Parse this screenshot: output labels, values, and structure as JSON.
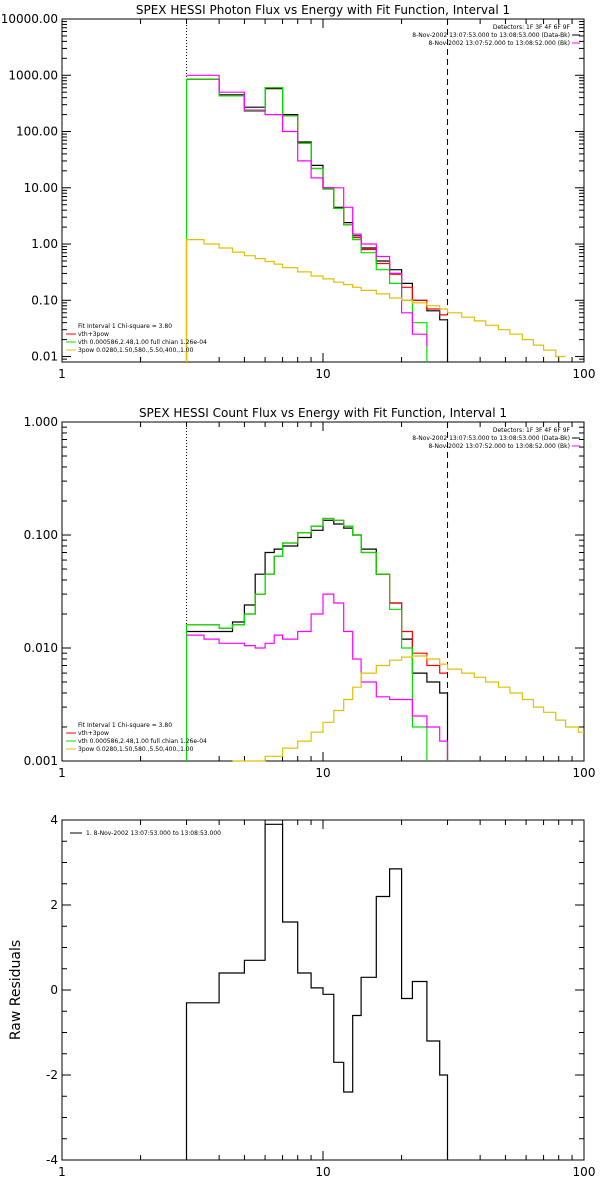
{
  "colors": {
    "black": "#000000",
    "red": "#ff0000",
    "green": "#00e000",
    "magenta": "#ff00ff",
    "yellow": "#e0c000"
  },
  "chart_data": [
    {
      "type": "line",
      "title": "SPEX HESSI Photon Flux vs Energy with Fit Function, Interval 1",
      "xscale": "log",
      "yscale": "log",
      "xlim": [
        1,
        100
      ],
      "ylim": [
        0.008,
        10000
      ],
      "x_ticks": [
        {
          "v": 1,
          "label": "1"
        },
        {
          "v": 10,
          "label": "10"
        },
        {
          "v": 100,
          "label": "100"
        }
      ],
      "y_ticks": [
        {
          "v": 0.01,
          "label": "0.01"
        },
        {
          "v": 0.1,
          "label": "0.10"
        },
        {
          "v": 1,
          "label": "1.00"
        },
        {
          "v": 10,
          "label": "10.00"
        },
        {
          "v": 100,
          "label": "100.00"
        },
        {
          "v": 1000,
          "label": "1000.00"
        },
        {
          "v": 10000,
          "label": "10000.00"
        }
      ],
      "vlines": [
        {
          "x": 3,
          "style": "dotted"
        },
        {
          "x": 30,
          "style": "dashed"
        }
      ],
      "info_lines": [
        "Detectors: 1F 3F 4F 6F 9F",
        "8-Nov-2002 13:07:53.000 to 13:08:53.000 (Data-Bk)",
        "8-Nov-2002 13:07:52.000 to 13:08:52.000 (Bk)"
      ],
      "info_colors": [
        "",
        "#000000",
        "#ff00ff"
      ],
      "legend_lines": [
        "Fit Interval 1   Chi-square = 3.80",
        "vth+3pow",
        "vth 0.000586,2.48,1.00  full chian 1.26e-04",
        "3pow 0.0280,1.50,580.,5.50,400.,1.00"
      ],
      "legend_colors": [
        "",
        "#ff0000",
        "#00e000",
        "#e0c000"
      ],
      "series": [
        {
          "color": "#000000",
          "edges": [
            3,
            3.5,
            4,
            4.5,
            5,
            5.5,
            6,
            6.5,
            7,
            8,
            9,
            10,
            11,
            12,
            13,
            14,
            16,
            18,
            20,
            22,
            25,
            28,
            30
          ],
          "values": [
            850,
            850,
            450,
            450,
            270,
            270,
            580,
            580,
            200,
            65,
            25,
            10,
            4.5,
            2.4,
            1.4,
            0.85,
            0.5,
            0.35,
            0.2,
            0.1,
            0.065,
            0.045
          ],
          "drop": true,
          "drop_to": 0.008
        },
        {
          "color": "#ff0000",
          "edges": [
            3,
            3.5,
            4,
            4.5,
            5,
            5.5,
            6,
            6.5,
            7,
            8,
            9,
            10,
            11,
            12,
            13,
            14,
            16,
            18,
            20,
            22,
            25,
            28,
            30
          ],
          "values": [
            850,
            850,
            430,
            430,
            230,
            230,
            600,
            600,
            190,
            62,
            22,
            9.5,
            4.3,
            2.2,
            1.3,
            0.8,
            0.45,
            0.29,
            0.17,
            0.1,
            0.07,
            0.055
          ]
        },
        {
          "color": "#00e000",
          "edges": [
            3,
            3.5,
            4,
            4.5,
            5,
            5.5,
            6,
            6.5,
            7,
            8,
            9,
            10,
            11,
            12,
            13,
            14,
            16,
            18,
            20,
            22,
            25
          ],
          "values": [
            850,
            850,
            430,
            430,
            230,
            230,
            600,
            600,
            190,
            62,
            22,
            9.5,
            4.3,
            2.2,
            1.2,
            0.7,
            0.35,
            0.2,
            0.1,
            0.04
          ],
          "rise_from": 0.008,
          "drop": true,
          "drop_to": 0.008
        },
        {
          "color": "#ff00ff",
          "edges": [
            3,
            3.5,
            4,
            4.5,
            5,
            5.5,
            6,
            6.5,
            7,
            8,
            9,
            10,
            11,
            12,
            13,
            14,
            16,
            18,
            20,
            22,
            25
          ],
          "values": [
            1000,
            1000,
            500,
            500,
            240,
            240,
            200,
            200,
            100,
            30,
            15,
            10,
            10,
            4.5,
            1.5,
            1.0,
            0.6,
            0.3,
            0.06,
            0.025,
            0.015
          ],
          "drop": true,
          "drop_to": 0.008
        },
        {
          "color": "#e0c000",
          "edges": [
            3,
            3.5,
            4,
            4.5,
            5,
            5.5,
            6,
            6.5,
            7,
            8,
            9,
            10,
            11,
            12,
            13,
            14,
            16,
            18,
            20,
            22,
            25,
            28,
            30,
            34,
            38,
            42,
            47,
            52,
            58,
            64,
            70,
            78,
            85
          ],
          "values": [
            1.2,
            1.0,
            0.85,
            0.72,
            0.62,
            0.55,
            0.49,
            0.44,
            0.38,
            0.32,
            0.27,
            0.24,
            0.21,
            0.19,
            0.17,
            0.15,
            0.13,
            0.11,
            0.1,
            0.09,
            0.08,
            0.07,
            0.06,
            0.05,
            0.043,
            0.036,
            0.03,
            0.025,
            0.02,
            0.016,
            0.013,
            0.01
          ],
          "rise_from": 0.008
        }
      ]
    },
    {
      "type": "line",
      "title": "SPEX HESSI Count Flux vs Energy with Fit Function, Interval 1",
      "xscale": "log",
      "yscale": "log",
      "xlim": [
        1,
        100
      ],
      "ylim": [
        0.001,
        1.0
      ],
      "x_ticks": [
        {
          "v": 1,
          "label": "1"
        },
        {
          "v": 10,
          "label": "10"
        },
        {
          "v": 100,
          "label": "100"
        }
      ],
      "y_ticks": [
        {
          "v": 0.001,
          "label": "0.001"
        },
        {
          "v": 0.01,
          "label": "0.010"
        },
        {
          "v": 0.1,
          "label": "0.100"
        },
        {
          "v": 1,
          "label": "1.000"
        }
      ],
      "vlines": [
        {
          "x": 3,
          "style": "dotted"
        },
        {
          "x": 30,
          "style": "dashed"
        }
      ],
      "info_lines": [
        "Detectors: 1F 3F 4F 6F 9F",
        "8-Nov-2002 13:07:53.000 to 13:08:53.000 (Data-Bk)",
        "8-Nov-2002 13:07:52.000 to 13:08:52.000 (Bk)"
      ],
      "info_colors": [
        "",
        "#000000",
        "#ff00ff"
      ],
      "legend_lines": [
        "Fit Interval 1   Chi-square = 3.80",
        "vth+3pow",
        "vth 0.000586,2.48,1.00  full chian 1.26e-04",
        "3pow 0.0280,1.50,580.,5.50,400.,1.00"
      ],
      "legend_colors": [
        "",
        "#ff0000",
        "#00e000",
        "#e0c000"
      ],
      "series": [
        {
          "color": "#000000",
          "edges": [
            3,
            3.5,
            4,
            4.5,
            5,
            5.5,
            6,
            6.5,
            7,
            8,
            9,
            10,
            11,
            12,
            13,
            14,
            16,
            18,
            20,
            22,
            25,
            28,
            30
          ],
          "values": [
            0.014,
            0.014,
            0.014,
            0.017,
            0.024,
            0.045,
            0.07,
            0.075,
            0.08,
            0.095,
            0.11,
            0.135,
            0.125,
            0.115,
            0.1,
            0.075,
            0.045,
            0.025,
            0.012,
            0.006,
            0.005,
            0.004
          ],
          "drop": true,
          "drop_to": 0.001
        },
        {
          "color": "#ff0000",
          "edges": [
            3,
            3.5,
            4,
            4.5,
            5,
            5.5,
            6,
            6.5,
            7,
            8,
            9,
            10,
            11,
            12,
            13,
            14,
            16,
            18,
            20,
            22,
            25,
            28,
            30
          ],
          "values": [
            0.016,
            0.016,
            0.015,
            0.016,
            0.02,
            0.03,
            0.045,
            0.065,
            0.085,
            0.105,
            0.12,
            0.14,
            0.135,
            0.12,
            0.1,
            0.07,
            0.045,
            0.025,
            0.014,
            0.009,
            0.007,
            0.006
          ]
        },
        {
          "color": "#00e000",
          "edges": [
            3,
            3.5,
            4,
            4.5,
            5,
            5.5,
            6,
            6.5,
            7,
            8,
            9,
            10,
            11,
            12,
            13,
            14,
            16,
            18,
            20,
            22,
            25
          ],
          "values": [
            0.016,
            0.016,
            0.015,
            0.016,
            0.02,
            0.03,
            0.045,
            0.065,
            0.085,
            0.105,
            0.12,
            0.14,
            0.135,
            0.12,
            0.1,
            0.07,
            0.045,
            0.022,
            0.01,
            0.002
          ],
          "rise_from": 0.001,
          "drop": true,
          "drop_to": 0.001
        },
        {
          "color": "#ff00ff",
          "edges": [
            3,
            3.5,
            4,
            4.5,
            5,
            5.5,
            6,
            6.5,
            7,
            8,
            9,
            10,
            11,
            12,
            13,
            14,
            16,
            18,
            20,
            22,
            25,
            28,
            30
          ],
          "values": [
            0.013,
            0.012,
            0.011,
            0.011,
            0.0105,
            0.01,
            0.011,
            0.013,
            0.012,
            0.014,
            0.02,
            0.03,
            0.025,
            0.014,
            0.008,
            0.005,
            0.0037,
            0.0035,
            0.0035,
            0.0025,
            0.002,
            0.0015
          ],
          "drop": true,
          "drop_to": 0.001
        },
        {
          "color": "#e0c000",
          "edges": [
            4.5,
            6,
            7,
            8,
            9,
            10,
            11,
            12,
            13,
            14,
            16,
            18,
            20,
            22,
            25,
            28,
            30,
            34,
            38,
            42,
            47,
            52,
            58,
            64,
            70,
            78,
            85,
            95,
            100
          ],
          "values": [
            0.001,
            0.0011,
            0.0013,
            0.0015,
            0.0018,
            0.0022,
            0.0028,
            0.0035,
            0.0045,
            0.006,
            0.007,
            0.0078,
            0.0083,
            0.0085,
            0.008,
            0.0072,
            0.0065,
            0.006,
            0.0055,
            0.005,
            0.0045,
            0.004,
            0.0035,
            0.003,
            0.0027,
            0.0023,
            0.002,
            0.0018
          ],
          "rise_from": 0.001
        }
      ]
    },
    {
      "type": "line",
      "title": "",
      "xscale": "log",
      "yscale": "linear",
      "xlim": [
        1,
        100
      ],
      "ylim": [
        -4,
        4
      ],
      "ylabel": "Raw Residuals",
      "x_ticks": [
        {
          "v": 1,
          "label": "1"
        },
        {
          "v": 10,
          "label": "10"
        },
        {
          "v": 100,
          "label": "100"
        }
      ],
      "y_ticks": [
        {
          "v": -4,
          "label": "-4"
        },
        {
          "v": -2,
          "label": "-2"
        },
        {
          "v": 0,
          "label": "0"
        },
        {
          "v": 2,
          "label": "2"
        },
        {
          "v": 4,
          "label": "4"
        }
      ],
      "legend_lines": [
        "1. 8-Nov-2002 13:07:53.000 to 13:08:53.000"
      ],
      "series": [
        {
          "color": "#000000",
          "edges": [
            3,
            3.5,
            4,
            4.5,
            5,
            5.5,
            6,
            6.5,
            7,
            8,
            9,
            10,
            11,
            12,
            13,
            14,
            16,
            18,
            20,
            22,
            25,
            28,
            30
          ],
          "values": [
            -0.3,
            -0.3,
            0.4,
            0.4,
            0.7,
            0.7,
            3.9,
            3.9,
            1.6,
            0.4,
            0.05,
            -0.1,
            -1.7,
            -2.4,
            -0.6,
            0.3,
            2.2,
            2.85,
            -0.2,
            0.2,
            -1.2,
            -2.0
          ],
          "rise_from": -4,
          "drop": true,
          "drop_to": -4
        }
      ]
    }
  ]
}
